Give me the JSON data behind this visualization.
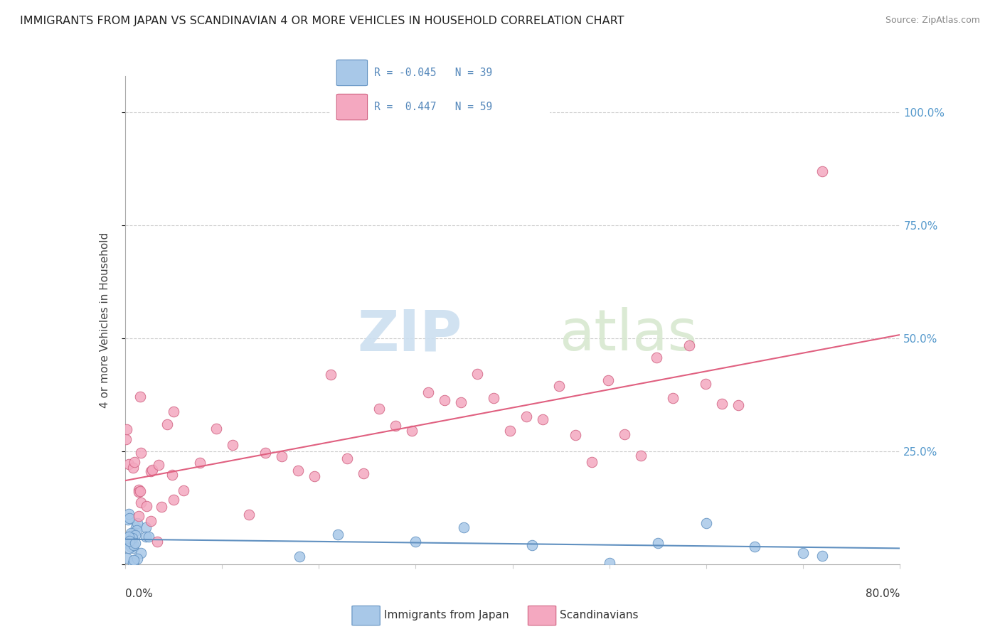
{
  "title": "IMMIGRANTS FROM JAPAN VS SCANDINAVIAN 4 OR MORE VEHICLES IN HOUSEHOLD CORRELATION CHART",
  "source": "Source: ZipAtlas.com",
  "ylabel": "4 or more Vehicles in Household",
  "xmin": 0.0,
  "xmax": 0.8,
  "ymin": 0.0,
  "ymax": 1.08,
  "legend_r1": "R = -0.045",
  "legend_n1": "N = 39",
  "legend_r2": "R =  0.447",
  "legend_n2": "N = 59",
  "series1_label": "Immigrants from Japan",
  "series2_label": "Scandinavians",
  "series1_color": "#a8c8e8",
  "series2_color": "#f4a8c0",
  "series1_edge": "#6090c0",
  "series2_edge": "#d06080",
  "line1_color": "#6090c0",
  "line2_color": "#e06080",
  "watermark_zip": "ZIP",
  "watermark_atlas": "atlas",
  "ytick_vals": [
    0.0,
    0.25,
    0.5,
    0.75,
    1.0
  ],
  "ytick_labels": [
    "",
    "25.0%",
    "50.0%",
    "75.0%",
    "100.0%"
  ]
}
